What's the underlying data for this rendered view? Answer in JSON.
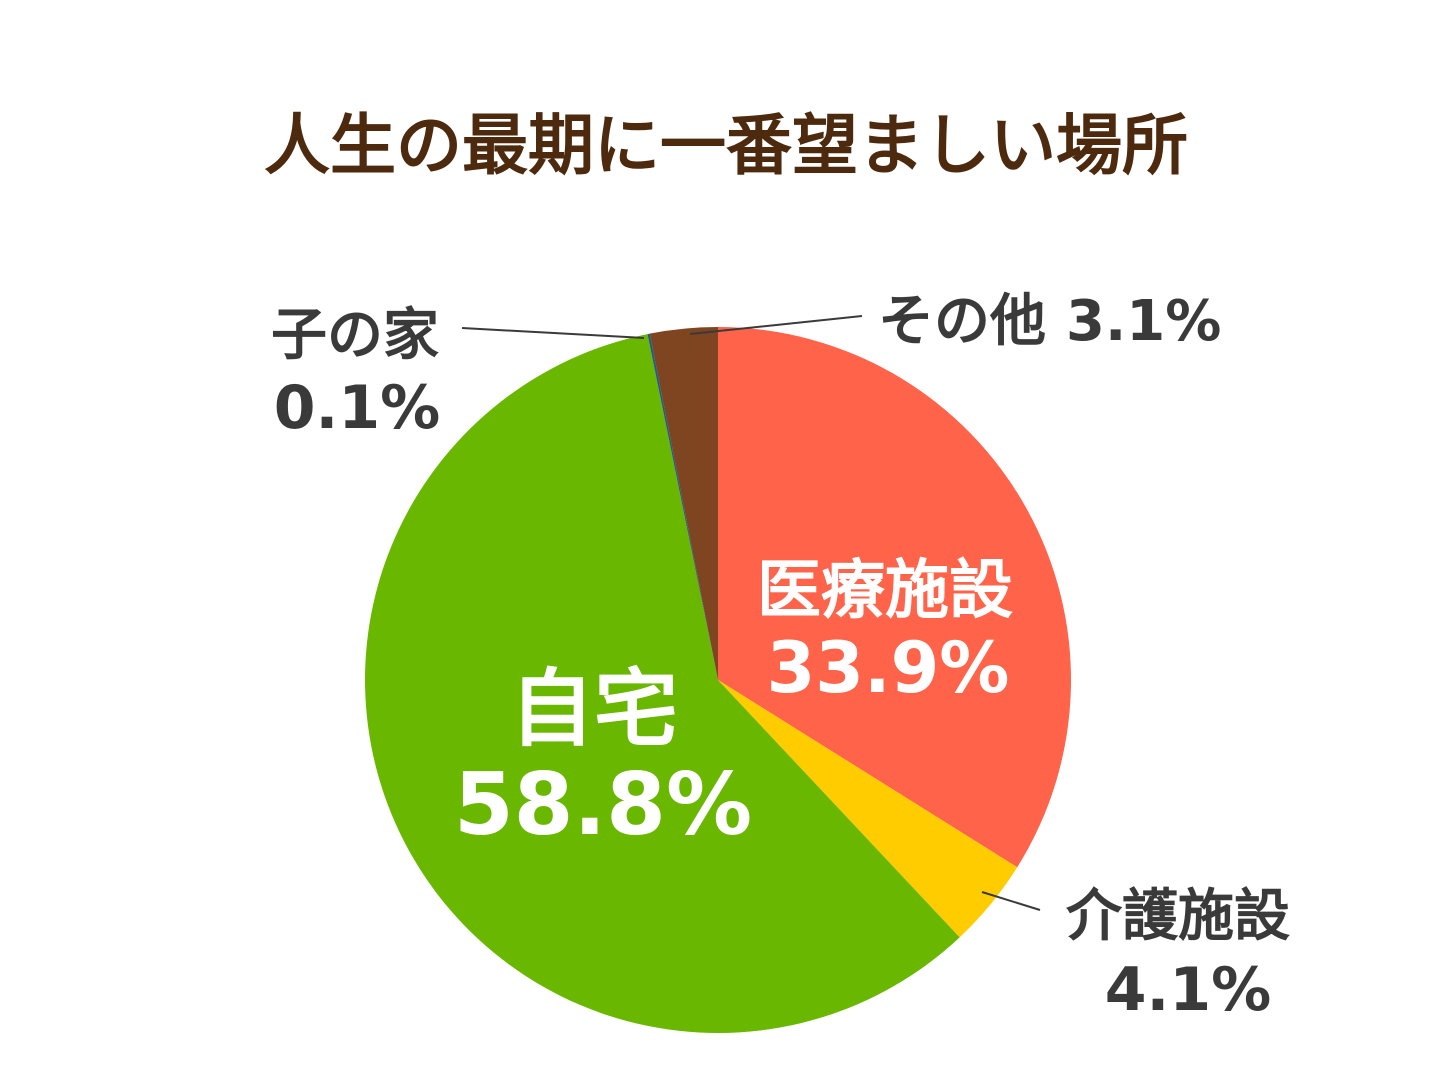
{
  "chart_data": {
    "type": "pie",
    "title": "人生の最期に一番望ましい場所",
    "start": "top",
    "direction": "clockwise",
    "slices": [
      {
        "name": "医療施設",
        "value": 33.9,
        "value_label": "33.9%",
        "color": "#ff634a"
      },
      {
        "name": "介護施設",
        "value": 4.1,
        "value_label": "4.1%",
        "color": "#ffcc00"
      },
      {
        "name": "自宅",
        "value": 58.8,
        "value_label": "58.8%",
        "color": "#6ab700"
      },
      {
        "name": "子の家",
        "value": 0.1,
        "value_label": "0.1%",
        "color": "#1a5e8c"
      },
      {
        "name": "その他",
        "value": 3.1,
        "value_label": "3.1%",
        "color": "#7f4420"
      }
    ]
  }
}
